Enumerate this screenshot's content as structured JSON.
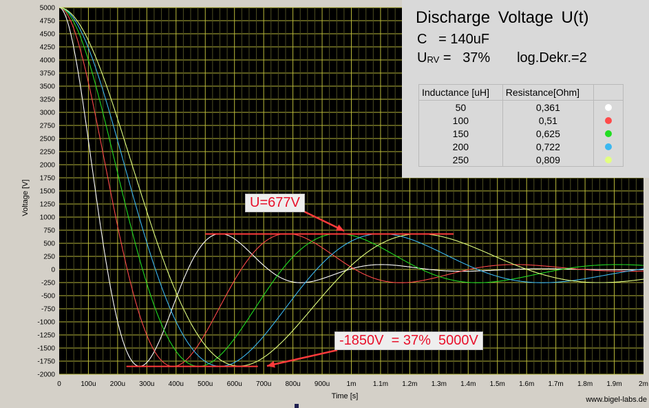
{
  "chart_data": {
    "type": "line",
    "title": "Discharge Voltage U(t)",
    "xlabel": "Time [s]",
    "ylabel": "Voltage [V]",
    "xlim_seconds": [
      0,
      0.002
    ],
    "ylim": [
      -2000,
      5000
    ],
    "y_ticks": [
      5000,
      4750,
      4500,
      4250,
      4000,
      3750,
      3500,
      3250,
      3000,
      2750,
      2500,
      2250,
      2000,
      1750,
      1500,
      1250,
      1000,
      750,
      500,
      250,
      0,
      -250,
      -500,
      -750,
      -1000,
      -1250,
      -1500,
      -1750,
      -2000
    ],
    "x_ticks": [
      {
        "t": 0,
        "label": "0"
      },
      {
        "t": 0.0001,
        "label": "100u"
      },
      {
        "t": 0.0002,
        "label": "200u"
      },
      {
        "t": 0.0003,
        "label": "300u"
      },
      {
        "t": 0.0004,
        "label": "400u"
      },
      {
        "t": 0.0005,
        "label": "500u"
      },
      {
        "t": 0.0006,
        "label": "600u"
      },
      {
        "t": 0.0007,
        "label": "700u"
      },
      {
        "t": 0.0008,
        "label": "800u"
      },
      {
        "t": 0.0009,
        "label": "900u"
      },
      {
        "t": 0.001,
        "label": "1m"
      },
      {
        "t": 0.0011,
        "label": "1.1m"
      },
      {
        "t": 0.0012,
        "label": "1.2m"
      },
      {
        "t": 0.0013,
        "label": "1.3m"
      },
      {
        "t": 0.0014,
        "label": "1.4m"
      },
      {
        "t": 0.0015,
        "label": "1.5m"
      },
      {
        "t": 0.0016,
        "label": "1.6m"
      },
      {
        "t": 0.0017,
        "label": "1.7m"
      },
      {
        "t": 0.0018,
        "label": "1.8m"
      },
      {
        "t": 0.0019,
        "label": "1.9m"
      },
      {
        "t": 0.002,
        "label": "2m"
      }
    ],
    "grid": true,
    "initial_voltage": 5000,
    "capacitance_F": 0.00014,
    "voltage_reversal_fraction": 0.37,
    "series": [
      {
        "inductance_uH": 50,
        "resistance_ohm": 0.361,
        "color": "#ffffff"
      },
      {
        "inductance_uH": 100,
        "resistance_ohm": 0.51,
        "color": "#ff4a4a"
      },
      {
        "inductance_uH": 150,
        "resistance_ohm": 0.625,
        "color": "#22dd22"
      },
      {
        "inductance_uH": 200,
        "resistance_ohm": 0.722,
        "color": "#3cb8f0"
      },
      {
        "inductance_uH": 250,
        "resistance_ohm": 0.809,
        "color": "#e2ff80"
      }
    ],
    "reference_lines": [
      {
        "y": 677,
        "t_start": 0.0005,
        "t_end": 0.00135,
        "color": "#ff3b3b"
      },
      {
        "y": -1850,
        "t_start": 0.00023,
        "t_end": 0.00068,
        "color": "#ff3b3b"
      }
    ]
  },
  "info": {
    "title": "Discharge Voltage U(t)",
    "c_line": "C   = 140uF",
    "u_sym": "U",
    "u_sub": "RV",
    "u_rest": " =   37%       log.Dekr.=2"
  },
  "legend": {
    "headers": [
      "Inductance [uH]",
      "Resistance[Ohm]",
      ""
    ],
    "rows": [
      {
        "inductance": "50",
        "resistance": "0,361",
        "color": "#ffffff"
      },
      {
        "inductance": "100",
        "resistance": "0,51",
        "color": "#ff4a4a"
      },
      {
        "inductance": "150",
        "resistance": "0,625",
        "color": "#22dd22"
      },
      {
        "inductance": "200",
        "resistance": "0,722",
        "color": "#3cb8f0"
      },
      {
        "inductance": "250",
        "resistance": "0,809",
        "color": "#e2ff80"
      }
    ]
  },
  "annotations": {
    "peak_label": "U=677V",
    "min_label": "-1850V  = 37%  5000V"
  },
  "credit": "www.bigel-labs.de"
}
